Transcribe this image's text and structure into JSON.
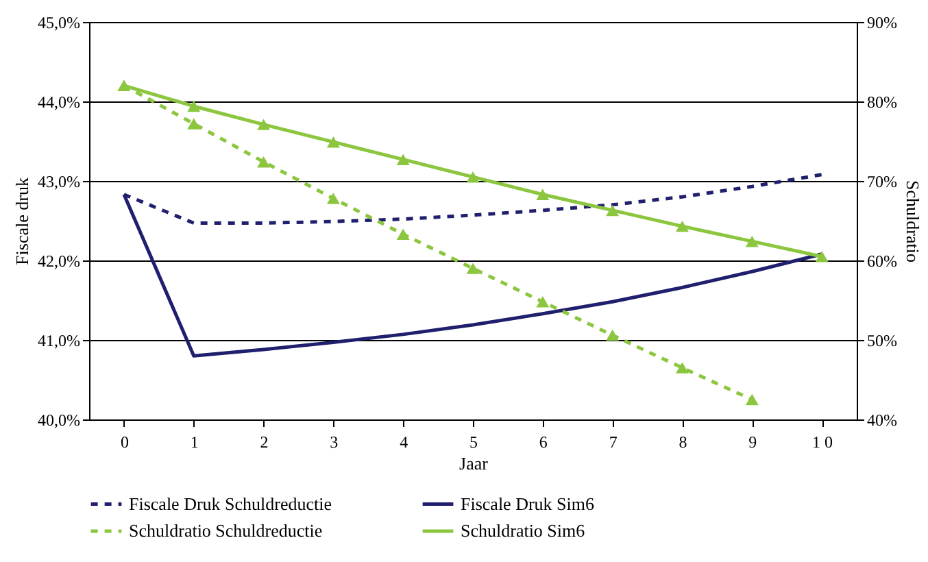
{
  "chart_data": {
    "type": "line",
    "xlabel": "Jaar",
    "ylabel": "Fiscale druk",
    "y2label": "Schuldratio",
    "categories": [
      "0",
      "1",
      "2",
      "3",
      "4",
      "5",
      "6",
      "7",
      "8",
      "9",
      "1 0"
    ],
    "ylim": [
      40,
      45
    ],
    "yticks": [
      {
        "value": 40,
        "label": "40,0%"
      },
      {
        "value": 41,
        "label": "41,0%"
      },
      {
        "value": 42,
        "label": "42,0%"
      },
      {
        "value": 43,
        "label": "43,0%"
      },
      {
        "value": 44,
        "label": "44,0%"
      },
      {
        "value": 45,
        "label": "45,0%"
      }
    ],
    "y2lim": [
      40,
      90
    ],
    "y2ticks": [
      {
        "value": 40,
        "label": "40%"
      },
      {
        "value": 50,
        "label": "50%"
      },
      {
        "value": 60,
        "label": "60%"
      },
      {
        "value": 70,
        "label": "70%"
      },
      {
        "value": 80,
        "label": "80%"
      },
      {
        "value": 90,
        "label": "90%"
      }
    ],
    "grid": "y",
    "legend": "bottom",
    "series": [
      {
        "name": "Fiscale Druk Schuldreductie",
        "color": "#1f1f6e",
        "line_style": "dashed",
        "marker": "none",
        "values": [
          42.83,
          42.47,
          42.47,
          42.49,
          42.52,
          42.57,
          42.63,
          42.7,
          42.8,
          42.93,
          43.08
        ]
      },
      {
        "name": "Fiscale Druk Sim6",
        "color": "#1f1f6e",
        "line_style": "solid",
        "marker": "none",
        "values": [
          42.83,
          40.8,
          40.88,
          40.97,
          41.07,
          41.19,
          41.33,
          41.48,
          41.66,
          41.86,
          42.08
        ]
      },
      {
        "name": "Schuldratio Schuldreductie",
        "color": "#8cc63f",
        "line_style": "dashed",
        "marker": "triangle",
        "axis": "y2",
        "values": [
          82,
          77.2,
          72.4,
          67.8,
          63.3,
          59,
          54.8,
          50.6,
          46.5,
          42.5,
          null
        ]
      },
      {
        "name": "Schuldratio Sim6",
        "color": "#8cc63f",
        "line_style": "solid",
        "marker": "triangle",
        "axis": "y2",
        "values": [
          82,
          79.4,
          77.1,
          74.9,
          72.7,
          70.5,
          68.3,
          66.3,
          64.3,
          62.4,
          60.5
        ]
      }
    ]
  }
}
